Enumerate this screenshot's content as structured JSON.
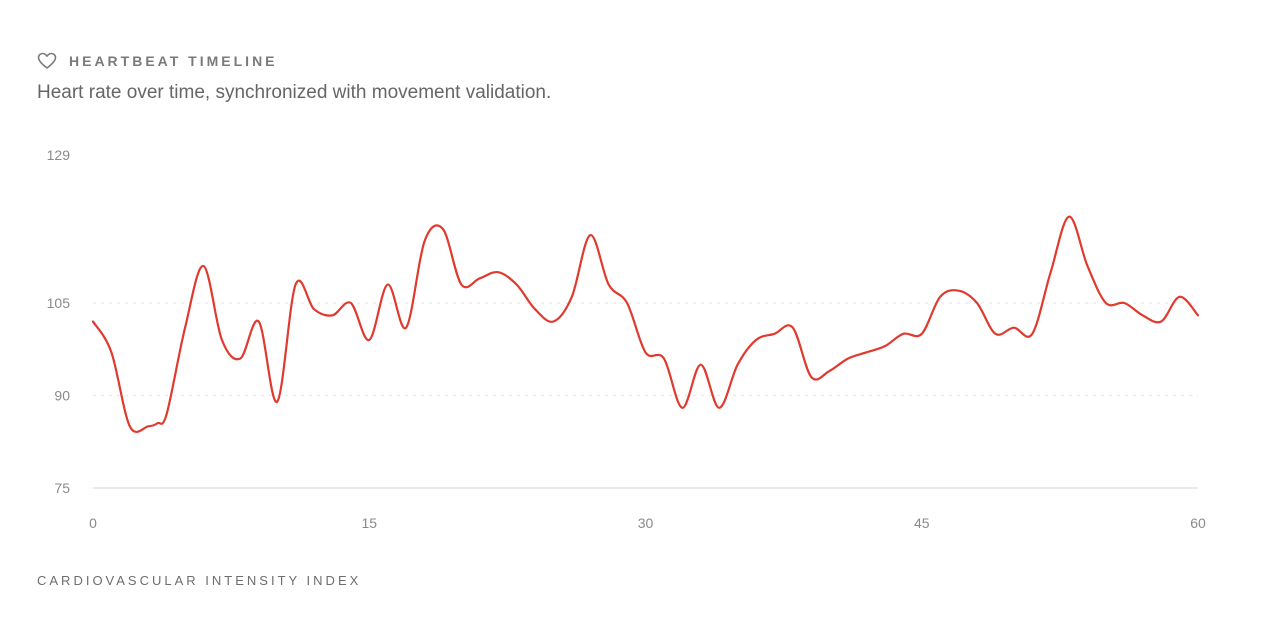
{
  "header": {
    "title": "HEARTBEAT TIMELINE",
    "subtitle": "Heart rate over time, synchronized with movement validation.",
    "icon": "heart-icon"
  },
  "footer": {
    "label": "CARDIOVASCULAR INTENSITY INDEX"
  },
  "colors": {
    "line": "#e03a2f",
    "grid": "#e6e6e6",
    "axis": "#dedede",
    "text": "#8a8a8a"
  },
  "chart_data": {
    "type": "line",
    "title": "HEARTBEAT TIMELINE",
    "xlabel": "",
    "ylabel": "",
    "xlim": [
      0,
      60
    ],
    "ylim": [
      75,
      129
    ],
    "x_ticks": [
      "0",
      "15",
      "30",
      "45",
      "60"
    ],
    "y_ticks": [
      "75",
      "90",
      "105",
      "129"
    ],
    "grid": true,
    "series": [
      {
        "name": "Heart rate",
        "x": [
          0,
          1,
          2,
          3,
          3.5,
          4,
          5,
          6,
          7,
          8,
          9,
          10,
          11,
          12,
          13,
          14,
          15,
          16,
          17,
          18,
          19,
          20,
          21,
          22,
          23,
          24,
          25,
          26,
          27,
          28,
          29,
          30,
          31,
          32,
          33,
          34,
          35,
          36,
          37,
          38,
          39,
          40,
          41,
          42,
          43,
          44,
          45,
          46,
          47,
          48,
          49,
          50,
          51,
          52,
          53,
          54,
          55,
          56,
          57,
          58,
          59,
          60
        ],
        "y": [
          102,
          97,
          85,
          85,
          85.5,
          87,
          101,
          111,
          99,
          96,
          102,
          89,
          108,
          104,
          103,
          105,
          99,
          108,
          101,
          115,
          117,
          108,
          109,
          110,
          108,
          104,
          102,
          106,
          116,
          108,
          105,
          97,
          96,
          88,
          95,
          88,
          95,
          99,
          100,
          101,
          93,
          94,
          96,
          97,
          98,
          100,
          100,
          106,
          107,
          105,
          100,
          101,
          100,
          110,
          119,
          111,
          105,
          105,
          103,
          102,
          106,
          103
        ]
      }
    ]
  }
}
